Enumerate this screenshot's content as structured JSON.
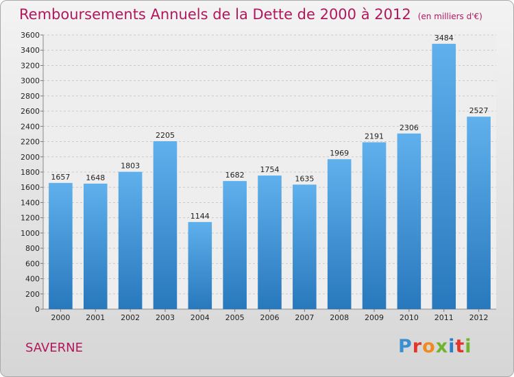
{
  "header": {
    "title": "Remboursements Annuels de la Dette de 2000 à 2012",
    "subtitle": "(en milliers d'€)"
  },
  "footer": {
    "city": "SAVERNE",
    "logo_text": "Proxiti",
    "logo_colors": [
      "#3a8fd1",
      "#e4352b",
      "#f08a1c",
      "#6fb52c",
      "#2a7fc9",
      "#e4352b",
      "#6fb52c"
    ]
  },
  "colors": {
    "accent": "#b2175d",
    "bar_top": "#5fb0ec",
    "bar_bottom": "#2878bd"
  },
  "chart_data": {
    "type": "bar",
    "title": "Remboursements Annuels de la Dette de 2000 à 2012",
    "subtitle": "(en milliers d'€)",
    "categories": [
      "2000",
      "2001",
      "2002",
      "2003",
      "2004",
      "2005",
      "2006",
      "2007",
      "2008",
      "2009",
      "2010",
      "2011",
      "2012"
    ],
    "values": [
      1657,
      1648,
      1803,
      2205,
      1144,
      1682,
      1754,
      1635,
      1969,
      2191,
      2306,
      3484,
      2527
    ],
    "ylim": [
      0,
      3600
    ],
    "yticks": [
      0,
      200,
      400,
      600,
      800,
      1000,
      1200,
      1400,
      1600,
      1800,
      2000,
      2200,
      2400,
      2600,
      2800,
      3000,
      3200,
      3400,
      3600
    ],
    "grid": true,
    "xlabel": "",
    "ylabel": ""
  }
}
